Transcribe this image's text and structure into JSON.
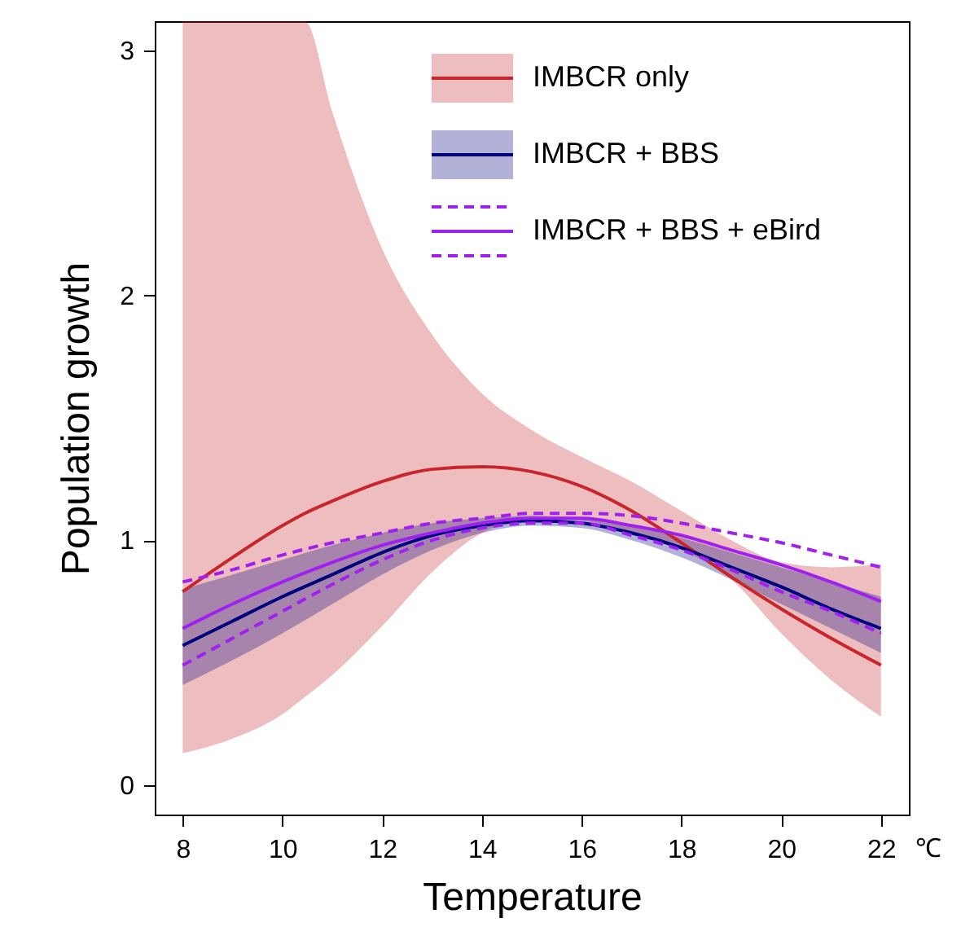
{
  "chart_data": {
    "type": "line",
    "xlabel": "Temperature",
    "ylabel": "Population growth",
    "annotations": [
      "℃"
    ],
    "x": [
      8,
      9,
      10,
      11,
      12,
      13,
      14,
      15,
      16,
      17,
      18,
      19,
      20,
      21,
      22
    ],
    "xlim": [
      7.44,
      22.56
    ],
    "xticks": [
      8,
      10,
      12,
      14,
      16,
      18,
      20,
      22
    ],
    "ylim": [
      -0.12,
      3.12
    ],
    "yticks": [
      0,
      1,
      2,
      3
    ],
    "grid": false,
    "legend": "top right",
    "series": [
      {
        "name": "IMBCR only",
        "color": "#c8262b",
        "x": [
          8,
          9,
          10,
          10.45,
          11,
          12,
          13,
          14,
          15,
          16,
          17,
          18,
          19,
          20,
          21,
          22
        ],
        "values": [
          0.79,
          0.93,
          1.06,
          1.11,
          1.16,
          1.24,
          1.29,
          1.3,
          1.28,
          1.22,
          1.12,
          0.99,
          0.85,
          0.72,
          0.6,
          0.49
        ],
        "lower": [
          0.13,
          0.19,
          0.29,
          0.36,
          0.45,
          0.65,
          0.87,
          1.03,
          1.09,
          1.08,
          1.03,
          0.96,
          0.84,
          0.62,
          0.43,
          0.28
        ],
        "upper": [
          3.12,
          3.12,
          3.12,
          3.12,
          2.75,
          2.19,
          1.84,
          1.6,
          1.45,
          1.34,
          1.24,
          1.12,
          1.0,
          0.91,
          0.89,
          0.9
        ]
      },
      {
        "name": "IMBCR + BBS",
        "color": "#00007f",
        "values": [
          0.57,
          0.67,
          0.77,
          0.86,
          0.95,
          1.02,
          1.06,
          1.08,
          1.07,
          1.03,
          0.97,
          0.89,
          0.81,
          0.72,
          0.64
        ],
        "lower": [
          0.41,
          0.51,
          0.62,
          0.74,
          0.86,
          0.96,
          1.03,
          1.06,
          1.05,
          1.0,
          0.93,
          0.84,
          0.74,
          0.64,
          0.54
        ],
        "upper": [
          0.8,
          0.86,
          0.92,
          0.98,
          1.03,
          1.07,
          1.09,
          1.1,
          1.09,
          1.06,
          1.01,
          0.95,
          0.89,
          0.83,
          0.77
        ]
      },
      {
        "name": "IMBCR + BBS + eBird",
        "color": "#a020f0",
        "values": [
          0.64,
          0.74,
          0.83,
          0.91,
          0.98,
          1.03,
          1.07,
          1.09,
          1.09,
          1.06,
          1.02,
          0.96,
          0.9,
          0.83,
          0.75
        ]
      },
      {
        "color": "#a020f0",
        "line_style": "dashed",
        "values": [
          0.83,
          0.88,
          0.94,
          0.99,
          1.03,
          1.07,
          1.09,
          1.11,
          1.11,
          1.1,
          1.07,
          1.03,
          0.99,
          0.94,
          0.89
        ]
      },
      {
        "color": "#a020f0",
        "line_style": "dashed",
        "values": [
          0.49,
          0.6,
          0.71,
          0.82,
          0.92,
          1.0,
          1.05,
          1.07,
          1.07,
          1.02,
          0.96,
          0.88,
          0.79,
          0.71,
          0.62
        ]
      }
    ]
  }
}
